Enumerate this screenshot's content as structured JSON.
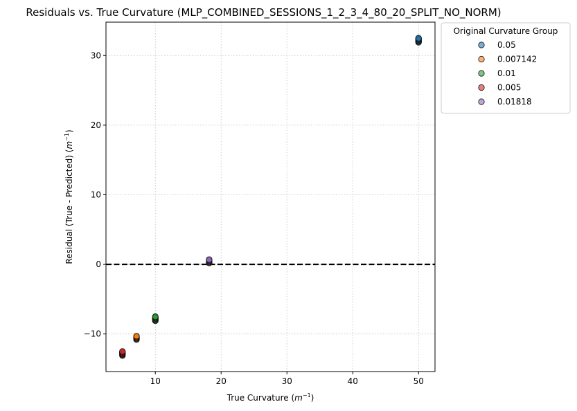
{
  "chart_data": {
    "type": "scatter",
    "title": "Residuals vs. True Curvature (MLP_COMBINED_SESSIONS_1_2_3_4_80_20_SPLIT_NO_NORM)",
    "xlabel_main": "True Curvature (",
    "xlabel_unit": "m",
    "xlabel_sup": "−1",
    "xlabel_end": ")",
    "ylabel_main": "Residual (True - Predicted) (",
    "ylabel_unit": "m",
    "ylabel_sup": "−1",
    "ylabel_end": ")",
    "xlim": [
      2.5,
      52.5
    ],
    "ylim": [
      -15.4,
      34.8
    ],
    "xticks": [
      10,
      20,
      30,
      40,
      50
    ],
    "yticks": [
      -10,
      0,
      10,
      20,
      30
    ],
    "xtick_labels": [
      "10",
      "20",
      "30",
      "40",
      "50"
    ],
    "ytick_labels": [
      "−10",
      "0",
      "10",
      "20",
      "30"
    ],
    "grid": true,
    "reference_line_y": 0,
    "legend_title": "Original Curvature Group",
    "legend_position": "outside-top-right",
    "series": [
      {
        "name": "0.05",
        "color": "#1f77b4",
        "x": [
          50,
          50,
          50,
          50,
          50,
          50,
          50
        ],
        "y": [
          31.9,
          32.0,
          32.1,
          32.2,
          32.3,
          32.4,
          32.5
        ]
      },
      {
        "name": "0.007142",
        "color": "#ff7f0e",
        "x": [
          7.14,
          7.14,
          7.14,
          7.14,
          7.14,
          7.14
        ],
        "y": [
          -10.8,
          -10.7,
          -10.6,
          -10.5,
          -10.4,
          -10.3
        ]
      },
      {
        "name": "0.01",
        "color": "#2ca02c",
        "x": [
          10,
          10,
          10,
          10,
          10,
          10,
          10
        ],
        "y": [
          -8.1,
          -8.0,
          -7.9,
          -7.8,
          -7.7,
          -7.6,
          -7.5
        ]
      },
      {
        "name": "0.005",
        "color": "#d62728",
        "x": [
          5,
          5,
          5,
          5,
          5,
          5,
          5
        ],
        "y": [
          -13.1,
          -13.0,
          -12.9,
          -12.8,
          -12.7,
          -12.6,
          -12.5
        ]
      },
      {
        "name": "0.01818",
        "color": "#9467bd",
        "x": [
          18.18,
          18.18,
          18.18,
          18.18,
          18.18,
          18.18
        ],
        "y": [
          0.2,
          0.3,
          0.4,
          0.5,
          0.6,
          0.7
        ]
      }
    ]
  }
}
